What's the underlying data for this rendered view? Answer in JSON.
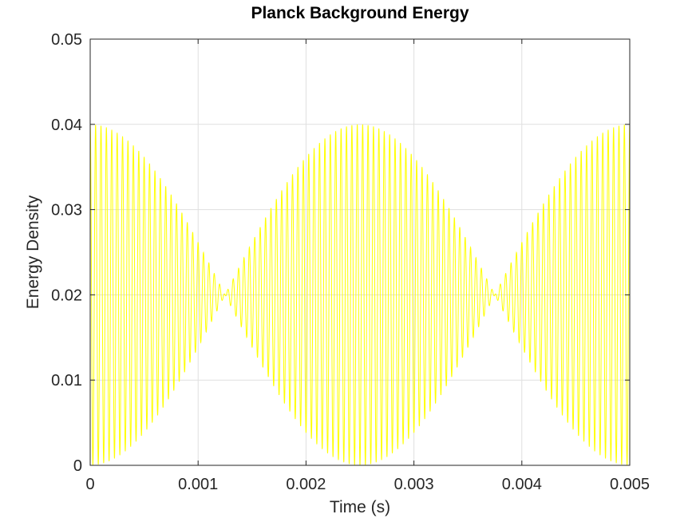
{
  "chart_data": {
    "type": "line",
    "title": "Planck Background Energy",
    "xlabel": "Time (s)",
    "ylabel": "Energy Density",
    "xlim": [
      0,
      0.005
    ],
    "ylim": [
      0,
      0.05
    ],
    "xticks": [
      0,
      0.001,
      0.002,
      0.003,
      0.004,
      0.005
    ],
    "xtick_labels": [
      "0",
      "0.001",
      "0.002",
      "0.003",
      "0.004",
      "0.005"
    ],
    "yticks": [
      0,
      0.01,
      0.02,
      0.03,
      0.04,
      0.05
    ],
    "ytick_labels": [
      "0",
      "0.01",
      "0.02",
      "0.03",
      "0.04",
      "0.05"
    ],
    "grid": true,
    "legend": "none",
    "series": [
      {
        "color": "#ffff00",
        "description": "y = 0.02 + 0.02 * cos(2*pi*200*t) * cos(2*pi*20000*t)",
        "baseline": 0.02,
        "amplitude": 0.02,
        "envelope_frequency_hz": 200,
        "carrier_frequency_hz": 20000
      }
    ]
  }
}
